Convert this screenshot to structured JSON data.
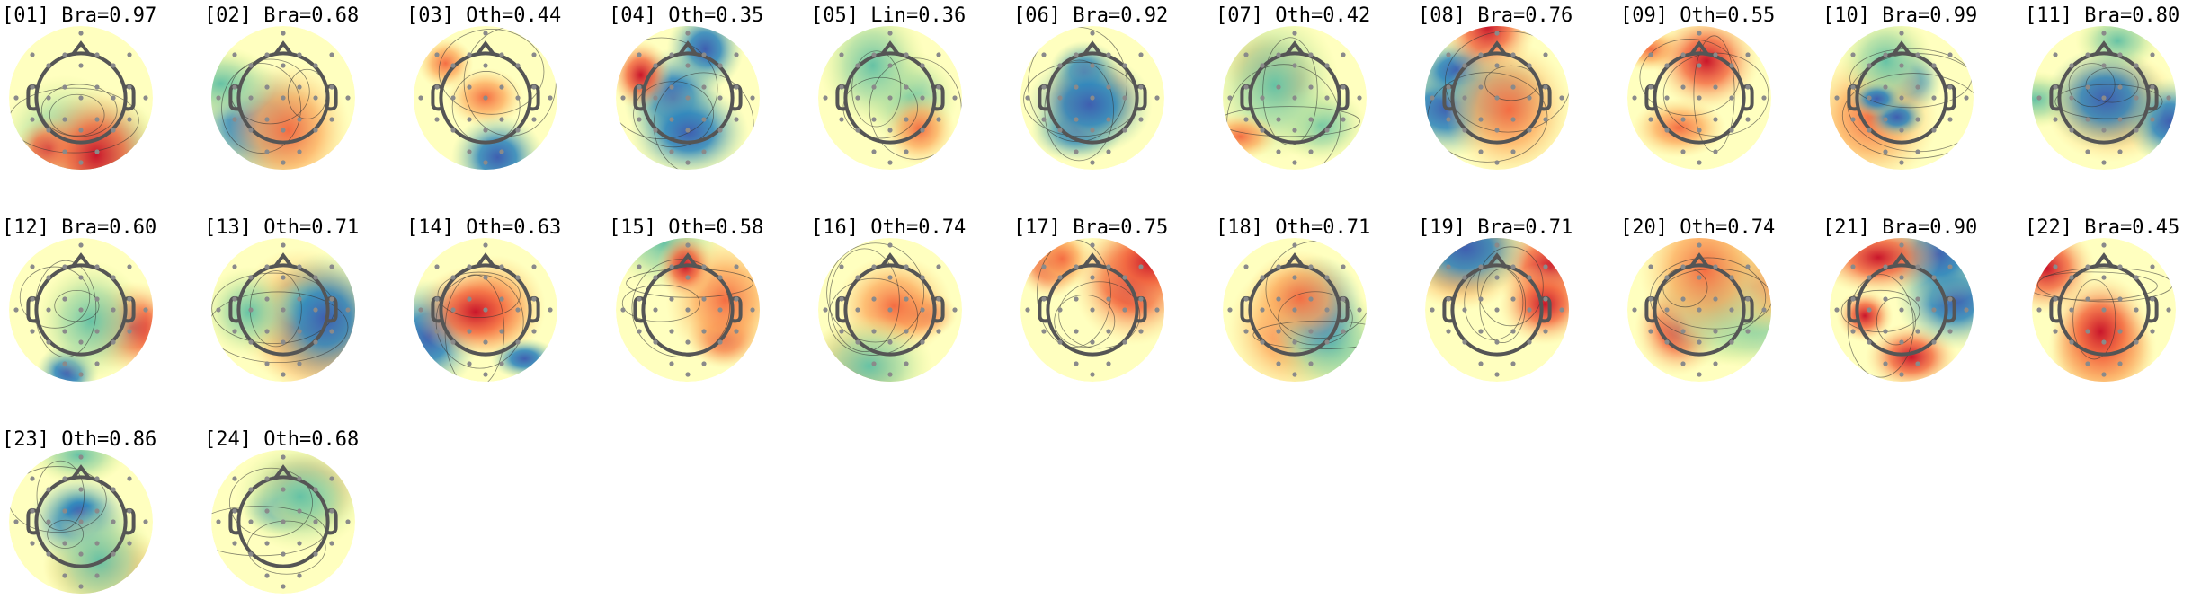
{
  "components": [
    {
      "title": "[01] Bra=0.97"
    },
    {
      "title": "[02] Bra=0.68"
    },
    {
      "title": "[03] Oth=0.44"
    },
    {
      "title": "[04] Oth=0.35"
    },
    {
      "title": "[05] Lin=0.36"
    },
    {
      "title": "[06] Bra=0.92"
    },
    {
      "title": "[07] Oth=0.42"
    },
    {
      "title": "[08] Bra=0.76"
    },
    {
      "title": "[09] Oth=0.55"
    },
    {
      "title": "[10] Bra=0.99"
    },
    {
      "title": "[11] Bra=0.80"
    },
    {
      "title": "[12] Bra=0.60"
    },
    {
      "title": "[13] Oth=0.71"
    },
    {
      "title": "[14] Oth=0.63"
    },
    {
      "title": "[15] Oth=0.58"
    },
    {
      "title": "[16] Oth=0.74"
    },
    {
      "title": "[17] Bra=0.75"
    },
    {
      "title": "[18] Oth=0.71"
    },
    {
      "title": "[19] Bra=0.71"
    },
    {
      "title": "[20] Oth=0.74"
    },
    {
      "title": "[21] Bra=0.90"
    },
    {
      "title": "[22] Bra=0.45"
    },
    {
      "title": "[23] Oth=0.86"
    },
    {
      "title": "[24] Oth=0.68"
    }
  ]
}
